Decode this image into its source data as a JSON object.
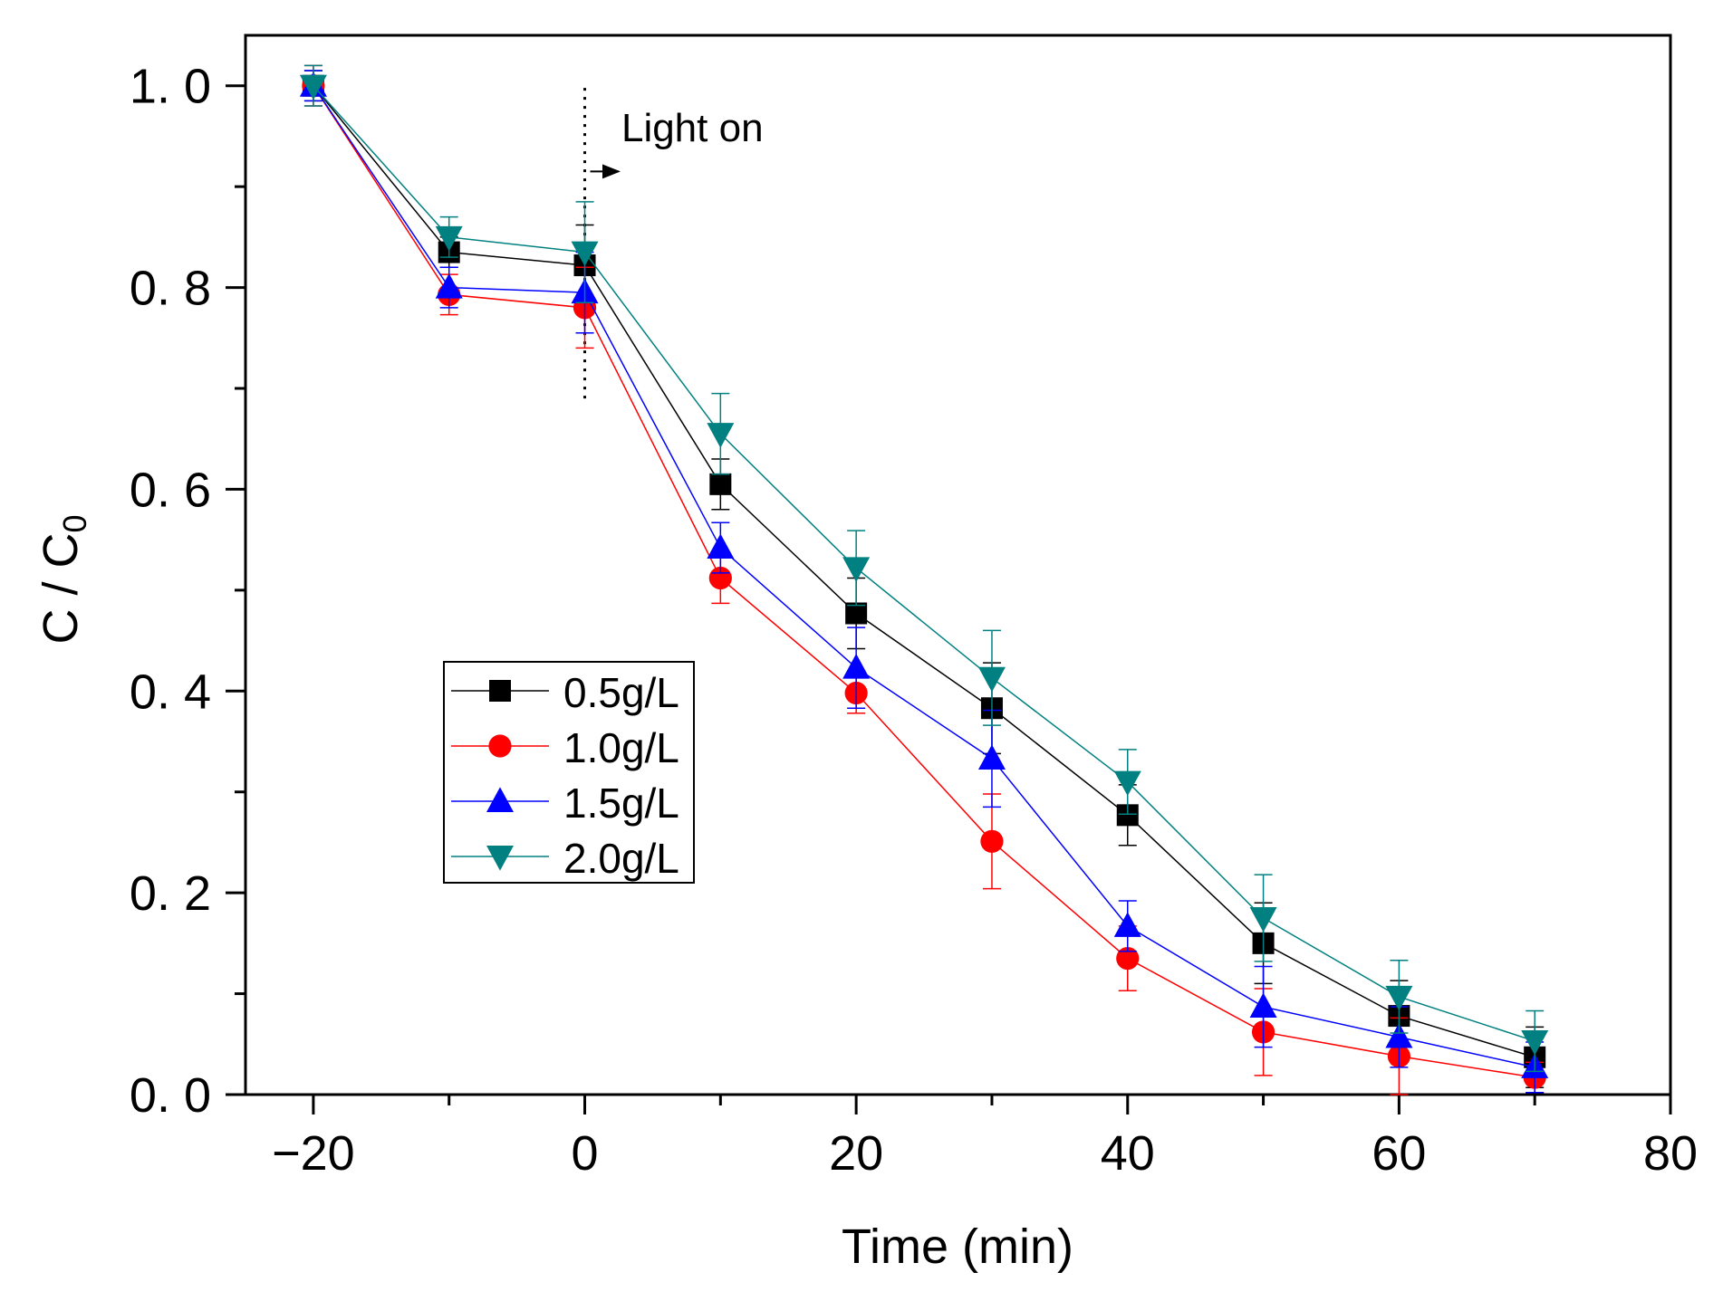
{
  "chart_data": {
    "type": "line",
    "title": "",
    "xlabel": "Time (min)",
    "ylabel": "C / C",
    "ylabel_sub": "0",
    "xlim": [
      -25,
      80
    ],
    "ylim": [
      0,
      1.05
    ],
    "xticks": [
      -20,
      0,
      20,
      40,
      60,
      80
    ],
    "xtick_labels": [
      "−20",
      "0",
      "20",
      "40",
      "60",
      "80"
    ],
    "xminor": [
      -10,
      10,
      30,
      50,
      70
    ],
    "yticks": [
      0,
      0.2,
      0.4,
      0.6,
      0.8,
      1.0
    ],
    "ytick_labels": [
      "0. 0",
      "0. 2",
      "0. 4",
      "0. 6",
      "0. 8",
      "1. 0"
    ],
    "yminor": [
      0.1,
      0.3,
      0.5,
      0.7,
      0.9
    ],
    "grid": false,
    "legend_position": "center-left",
    "x": [
      -20,
      -10,
      0,
      10,
      20,
      30,
      40,
      50,
      60,
      70
    ],
    "series": [
      {
        "name": "0.5g/L",
        "color": "#000000",
        "marker": "square",
        "values": [
          1.0,
          0.835,
          0.822,
          0.605,
          0.477,
          0.383,
          0.277,
          0.15,
          0.078,
          0.037
        ],
        "errors": [
          0.015,
          0.015,
          0.04,
          0.025,
          0.035,
          0.045,
          0.03,
          0.04,
          0.035,
          0.03
        ]
      },
      {
        "name": "1.0g/L",
        "color": "#ff0000",
        "marker": "circle",
        "values": [
          1.0,
          0.793,
          0.78,
          0.512,
          0.398,
          0.251,
          0.135,
          0.062,
          0.038,
          0.017
        ],
        "errors": [
          0.02,
          0.02,
          0.04,
          0.025,
          0.02,
          0.047,
          0.032,
          0.043,
          0.038,
          0.015
        ]
      },
      {
        "name": "1.5g/L",
        "color": "#0000ff",
        "marker": "triangle-up",
        "values": [
          1.0,
          0.8,
          0.795,
          0.542,
          0.423,
          0.333,
          0.167,
          0.087,
          0.057,
          0.027
        ],
        "errors": [
          0.015,
          0.02,
          0.04,
          0.025,
          0.04,
          0.048,
          0.025,
          0.04,
          0.03,
          0.025
        ]
      },
      {
        "name": "2.0g/L",
        "color": "#008080",
        "marker": "triangle-down",
        "values": [
          1.0,
          0.85,
          0.835,
          0.655,
          0.522,
          0.413,
          0.31,
          0.175,
          0.097,
          0.053
        ],
        "errors": [
          0.02,
          0.02,
          0.05,
          0.04,
          0.037,
          0.047,
          0.032,
          0.043,
          0.036,
          0.03
        ]
      }
    ],
    "annotations": [
      {
        "text": "Light on",
        "x": 2.7,
        "y": 0.945,
        "line_x": 0,
        "line_y": [
          0.69,
          1.0
        ],
        "arrow_from": [
          0.4,
          0.915
        ],
        "arrow_to": [
          2.5,
          0.915
        ]
      }
    ]
  }
}
